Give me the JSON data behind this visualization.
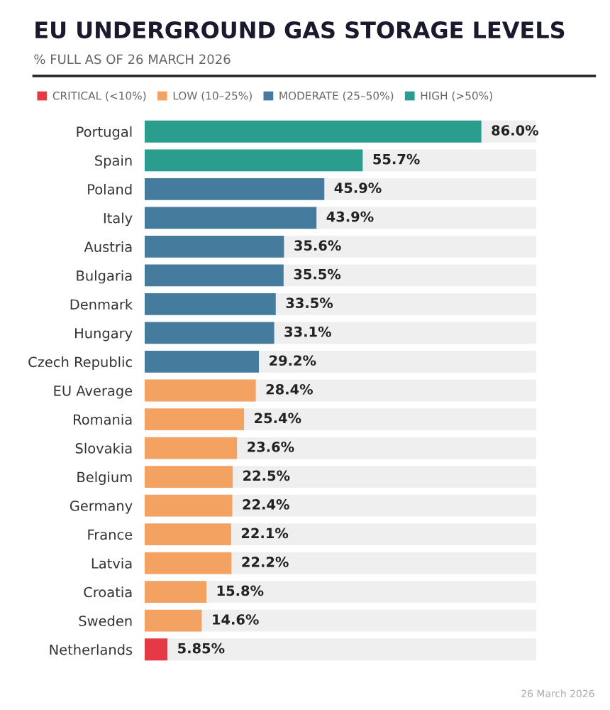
{
  "chart_data": {
    "type": "bar",
    "orientation": "horizontal",
    "title": "EU UNDERGROUND GAS STORAGE LEVELS",
    "subtitle": "% FULL AS OF 26 MARCH 2026",
    "categories": [
      "Portugal",
      "Spain",
      "Poland",
      "Italy",
      "Austria",
      "Bulgaria",
      "Denmark",
      "Hungary",
      "Czech Republic",
      "EU Average",
      "Romania",
      "Slovakia",
      "Belgium",
      "Germany",
      "France",
      "Latvia",
      "Croatia",
      "Sweden",
      "Netherlands"
    ],
    "series": [
      {
        "name": "CRITICAL (<10%)",
        "color": "#e63946",
        "values": [
          null,
          null,
          null,
          null,
          null,
          null,
          null,
          null,
          null,
          null,
          null,
          null,
          null,
          null,
          null,
          null,
          null,
          null,
          5.85
        ],
        "value_labels": [
          null,
          null,
          null,
          null,
          null,
          null,
          null,
          null,
          null,
          null,
          null,
          null,
          null,
          null,
          null,
          null,
          null,
          null,
          "5.85%"
        ]
      },
      {
        "name": "LOW (10–25%)",
        "color": "#f4a261",
        "values": [
          null,
          null,
          null,
          null,
          null,
          null,
          null,
          null,
          null,
          28.4,
          25.4,
          23.6,
          22.5,
          22.4,
          22.1,
          22.2,
          15.8,
          14.6,
          null
        ],
        "value_labels": [
          null,
          null,
          null,
          null,
          null,
          null,
          null,
          null,
          null,
          "28.4%",
          "25.4%",
          "23.6%",
          "22.5%",
          "22.4%",
          "22.1%",
          "22.2%",
          "15.8%",
          "14.6%",
          null
        ]
      },
      {
        "name": "MODERATE (25–50%)",
        "color": "#457b9d",
        "values": [
          null,
          null,
          45.9,
          43.9,
          35.6,
          35.5,
          33.5,
          33.1,
          29.2,
          null,
          null,
          null,
          null,
          null,
          null,
          null,
          null,
          null,
          null
        ],
        "value_labels": [
          null,
          null,
          "45.9%",
          "43.9%",
          "35.6%",
          "35.5%",
          "33.5%",
          "33.1%",
          "29.2%",
          null,
          null,
          null,
          null,
          null,
          null,
          null,
          null,
          null,
          null
        ]
      },
      {
        "name": "HIGH (>50%)",
        "color": "#2a9d8f",
        "values": [
          86.0,
          55.7,
          null,
          null,
          null,
          null,
          null,
          null,
          null,
          null,
          null,
          null,
          null,
          null,
          null,
          null,
          null,
          null,
          null
        ],
        "value_labels": [
          "86.0%",
          "55.7%",
          null,
          null,
          null,
          null,
          null,
          null,
          null,
          null,
          null,
          null,
          null,
          null,
          null,
          null,
          null,
          null,
          null
        ]
      }
    ],
    "xlim": [
      0,
      100
    ],
    "tick_labels": "y",
    "grid": false,
    "legend": "top",
    "annotations": [
      "26 March 2026"
    ]
  }
}
